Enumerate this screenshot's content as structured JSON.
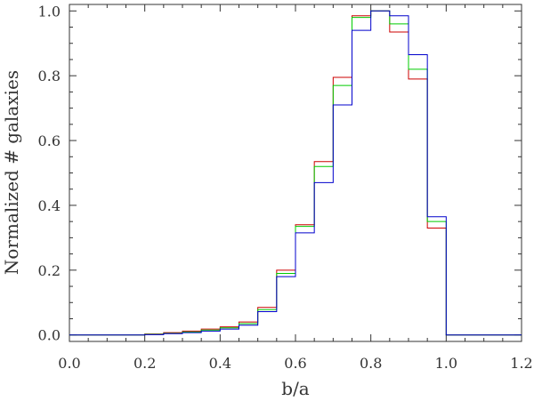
{
  "chart_data": {
    "type": "line",
    "title": "",
    "xlabel": "b/a",
    "ylabel": "Normalized # galaxies",
    "xlim": [
      0.0,
      1.2
    ],
    "ylim": [
      -0.02,
      1.02
    ],
    "xticks": [
      0.0,
      0.2,
      0.4,
      0.6,
      0.8,
      1.0,
      1.2
    ],
    "xtick_labels": [
      "0.0",
      "0.2",
      "0.4",
      "0.6",
      "0.8",
      "1.0",
      "1.2"
    ],
    "yticks": [
      0.0,
      0.2,
      0.4,
      0.6,
      0.8,
      1.0
    ],
    "ytick_labels": [
      "0.0",
      "0.2",
      "0.4",
      "0.6",
      "0.8",
      "1.0"
    ],
    "step": "histogram",
    "bin_edges": [
      0.0,
      0.05,
      0.1,
      0.15,
      0.2,
      0.25,
      0.3,
      0.35,
      0.4,
      0.45,
      0.5,
      0.55,
      0.6,
      0.65,
      0.7,
      0.75,
      0.8,
      0.85,
      0.9,
      0.95,
      1.0,
      1.05,
      1.1,
      1.15,
      1.2
    ],
    "grid": false,
    "legend": "none",
    "series": [
      {
        "color": "#cc0000",
        "values": [
          0,
          0,
          0,
          0,
          0.003,
          0.007,
          0.012,
          0.018,
          0.025,
          0.04,
          0.085,
          0.2,
          0.34,
          0.535,
          0.795,
          0.985,
          1.0,
          0.935,
          0.79,
          0.33,
          0,
          0,
          0,
          0
        ]
      },
      {
        "color": "#00cc00",
        "values": [
          0,
          0,
          0,
          0,
          0.002,
          0.005,
          0.009,
          0.015,
          0.022,
          0.035,
          0.078,
          0.19,
          0.335,
          0.52,
          0.77,
          0.98,
          1.0,
          0.96,
          0.82,
          0.35,
          0,
          0,
          0,
          0
        ]
      },
      {
        "color": "#0000cc",
        "values": [
          0,
          0,
          0,
          0,
          0.001,
          0.004,
          0.007,
          0.012,
          0.018,
          0.03,
          0.072,
          0.18,
          0.315,
          0.47,
          0.71,
          0.94,
          1.0,
          0.985,
          0.865,
          0.365,
          0,
          0,
          0,
          0
        ]
      }
    ]
  }
}
